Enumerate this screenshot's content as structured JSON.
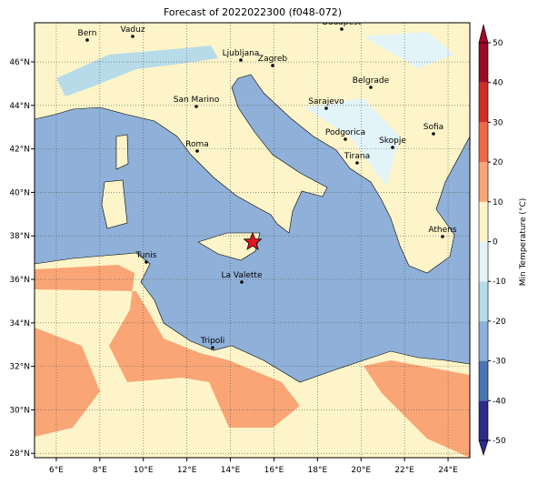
{
  "title": "Forecast of 2022022300 (f048-072)",
  "map": {
    "xlim": [
      5,
      25
    ],
    "ylim": [
      27.8,
      47.8
    ],
    "xticks": [
      {
        "value": 6,
        "label": "6°E"
      },
      {
        "value": 8,
        "label": "8°E"
      },
      {
        "value": 10,
        "label": "10°E"
      },
      {
        "value": 12,
        "label": "12°E"
      },
      {
        "value": 14,
        "label": "14°E"
      },
      {
        "value": 16,
        "label": "16°E"
      },
      {
        "value": 18,
        "label": "18°E"
      },
      {
        "value": 20,
        "label": "20°E"
      },
      {
        "value": 22,
        "label": "22°E"
      },
      {
        "value": 24,
        "label": "24°E"
      }
    ],
    "yticks": [
      {
        "value": 28,
        "label": "28°N"
      },
      {
        "value": 30,
        "label": "30°N"
      },
      {
        "value": 32,
        "label": "32°N"
      },
      {
        "value": 34,
        "label": "34°N"
      },
      {
        "value": 36,
        "label": "36°N"
      },
      {
        "value": 38,
        "label": "38°N"
      },
      {
        "value": 40,
        "label": "40°N"
      },
      {
        "value": 42,
        "label": "42°N"
      },
      {
        "value": 44,
        "label": "44°N"
      },
      {
        "value": 46,
        "label": "46°N"
      }
    ],
    "grid": true,
    "cities": [
      "Bern",
      "Vaduz",
      "Budapest",
      "Ljubljana",
      "Zagreb",
      "Belgrade",
      "San Marino",
      "Sarajevo",
      "Sofia",
      "Podgorica",
      "Skopje",
      "Roma",
      "Tirana",
      "Athens",
      "Tunis",
      "La Valette",
      "Tripoli"
    ]
  },
  "colorbar": {
    "label": "Min Temperature (°C)",
    "ticks": [
      -50,
      -40,
      -30,
      -20,
      -10,
      0,
      10,
      20,
      30,
      40,
      50
    ],
    "extend": "both",
    "colors": [
      "#2c2d8a",
      "#4a74b4",
      "#8fb0d8",
      "#b8dbea",
      "#e3f4f8",
      "#fdf5c9",
      "#f9a576",
      "#ee6a45",
      "#cf2e27",
      "#9c0a26"
    ]
  }
}
